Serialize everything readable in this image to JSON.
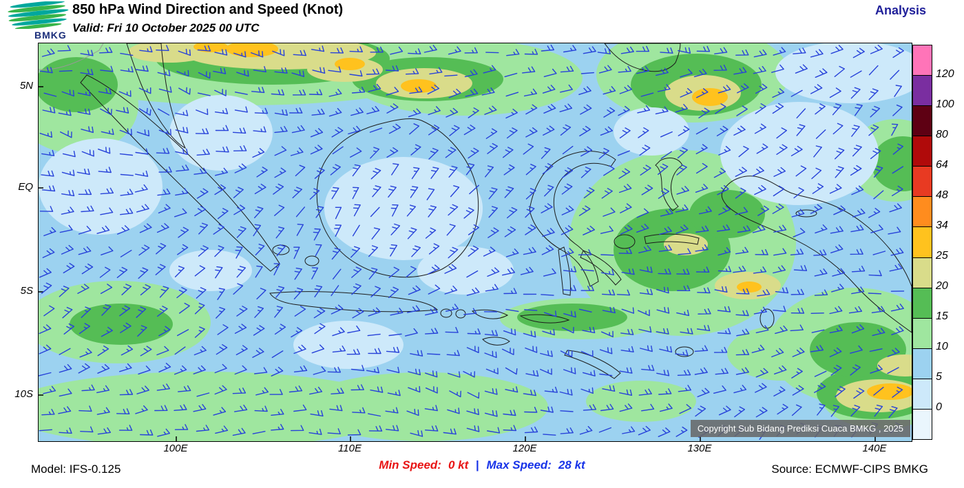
{
  "header": {
    "logo_text": "BMKG",
    "title": "850 hPa Wind Direction and Speed (Knot)",
    "valid": "Valid: Fri 10 October 2025 00 UTC",
    "mode": "Analysis"
  },
  "map": {
    "lat_labels": [
      "5N",
      "EQ",
      "5S",
      "10S"
    ],
    "lon_labels": [
      "100E",
      "110E",
      "120E",
      "130E",
      "140E"
    ],
    "copyright": "Copyright Sub Bidang Prediksi Cuaca BMKG , 2025",
    "barb_color": "#2742D9",
    "base_color": "#9CD2F0"
  },
  "legend": {
    "labels": [
      "120",
      "100",
      "80",
      "64",
      "48",
      "34",
      "25",
      "20",
      "15",
      "10",
      "5",
      "0"
    ],
    "colors_top_to_bottom": [
      "#FF74B8",
      "#7A2EA0",
      "#5E0013",
      "#B00A0A",
      "#E83A22",
      "#FF8C1E",
      "#FFC21E",
      "#D9DC8A",
      "#55BD55",
      "#9FE69F",
      "#9CD2F0",
      "#CDE9FA",
      "#EAF6FD"
    ]
  },
  "footer": {
    "model": "Model: IFS-0.125",
    "min_label": "Min Speed:",
    "min_value": "0 kt",
    "separator": "|",
    "max_label": "Max Speed:",
    "max_value": "28 kt",
    "source": "Source: ECMWF-CIPS BMKG"
  },
  "chart_data": {
    "type": "heatmap",
    "title": "850 hPa Wind Direction and Speed (Knot)",
    "valid_time": "Fri 10 October 2025 00 UTC",
    "mode": "Analysis",
    "lat_ticks": [
      "5N",
      "EQ",
      "5S",
      "10S"
    ],
    "lon_ticks": [
      "100E",
      "110E",
      "120E",
      "130E",
      "140E"
    ],
    "speed_scale_knots": [
      0,
      5,
      10,
      15,
      20,
      25,
      34,
      48,
      64,
      80,
      100,
      120
    ],
    "min_speed_kt": 0,
    "max_speed_kt": 28,
    "model": "IFS-0.125",
    "source": "ECMWF-CIPS BMKG"
  }
}
